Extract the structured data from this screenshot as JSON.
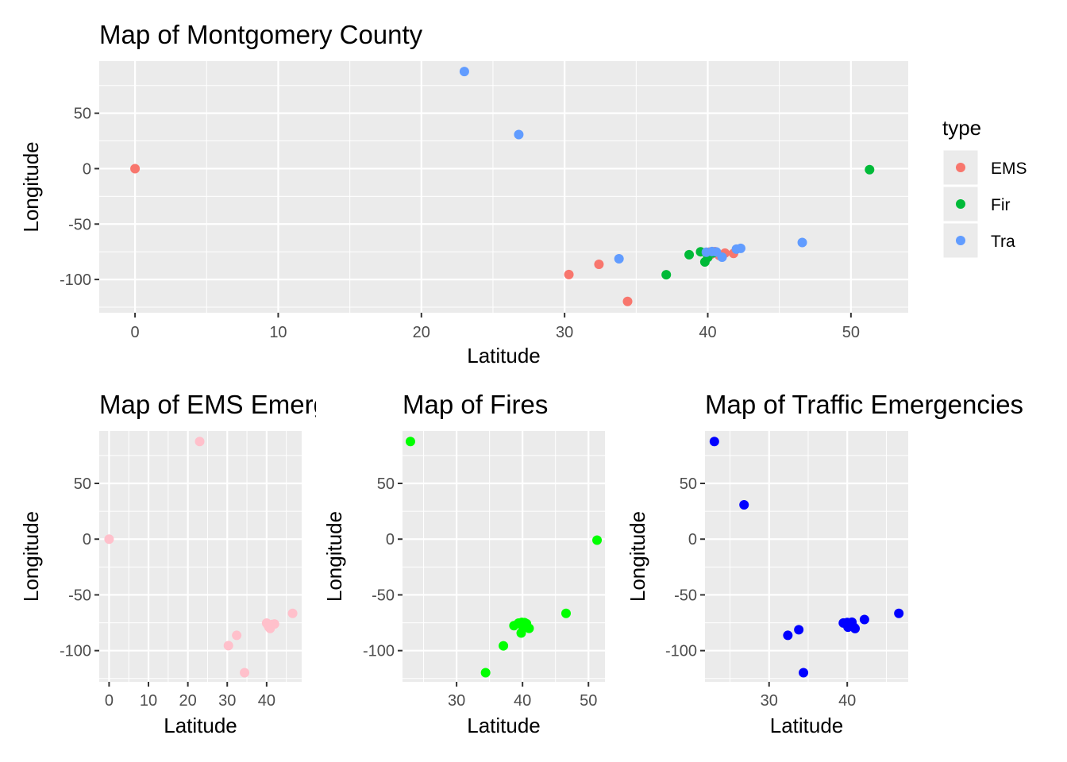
{
  "chart_data": [
    {
      "type": "scatter",
      "title": "Map of Montgomery County",
      "xlabel": "Latitude",
      "ylabel": "Longitude",
      "xlim": [
        -2.5,
        54
      ],
      "ylim": [
        -130,
        97
      ],
      "xticks": [
        0,
        10,
        20,
        30,
        40,
        50
      ],
      "yticks": [
        50,
        0,
        -50,
        -100
      ],
      "grid": true,
      "legend": {
        "title": "type",
        "position": "right",
        "entries": [
          {
            "label": "EMS",
            "color": "#F8766D"
          },
          {
            "label": "Fir",
            "color": "#00BA38"
          },
          {
            "label": "Tra",
            "color": "#619CFF"
          }
        ]
      },
      "series": [
        {
          "name": "EMS",
          "color": "#F8766D",
          "points": [
            [
              0,
              0
            ],
            [
              30.3,
              -95.5
            ],
            [
              32.4,
              -86.3
            ],
            [
              34.4,
              -119.8
            ],
            [
              40.1,
              -75.3
            ],
            [
              40.3,
              -75.9
            ],
            [
              40.6,
              -75.5
            ],
            [
              40.8,
              -78.3
            ],
            [
              40.5,
              -74.9
            ],
            [
              41.2,
              -76.2
            ],
            [
              41.8,
              -76.5
            ],
            [
              40.2,
              -77.5
            ]
          ]
        },
        {
          "name": "Fir",
          "color": "#00BA38",
          "points": [
            [
              51.3,
              -0.9
            ],
            [
              37.1,
              -95.7
            ],
            [
              38.7,
              -77.6
            ],
            [
              39.5,
              -75.0
            ],
            [
              39.8,
              -84.2
            ],
            [
              40.0,
              -80.1
            ],
            [
              40.4,
              -75.9
            ]
          ]
        },
        {
          "name": "Tra",
          "color": "#619CFF",
          "points": [
            [
              23.0,
              87.6
            ],
            [
              26.8,
              30.8
            ],
            [
              33.8,
              -81.3
            ],
            [
              39.9,
              -75.4
            ],
            [
              40.3,
              -74.8
            ],
            [
              40.6,
              -75.1
            ],
            [
              41.0,
              -79.9
            ],
            [
              42.0,
              -72.6
            ],
            [
              42.3,
              -71.9
            ],
            [
              46.6,
              -66.6
            ]
          ]
        }
      ]
    },
    {
      "type": "scatter",
      "title": "Map of EMS Emergencies",
      "xlabel": "Latitude",
      "ylabel": "Longitude",
      "xlim": [
        -2.5,
        48.9
      ],
      "ylim": [
        -128,
        97
      ],
      "xticks": [
        0,
        10,
        20,
        30,
        40
      ],
      "yticks": [
        50,
        0,
        -50,
        -100
      ],
      "grid": true,
      "color": "#FFC0CB",
      "points": [
        [
          0,
          0
        ],
        [
          23.0,
          87.6
        ],
        [
          30.3,
          -95.5
        ],
        [
          32.4,
          -86.3
        ],
        [
          34.4,
          -119.8
        ],
        [
          40.0,
          -75.3
        ],
        [
          40.3,
          -76.8
        ],
        [
          40.6,
          -78.9
        ],
        [
          40.9,
          -80.1
        ],
        [
          41.4,
          -76.6
        ],
        [
          42.0,
          -76.1
        ],
        [
          46.6,
          -66.6
        ]
      ]
    },
    {
      "type": "scatter",
      "title": "Map of Fires",
      "xlabel": "Latitude",
      "ylabel": "Longitude",
      "xlim": [
        21.8,
        52.5
      ],
      "ylim": [
        -128,
        97
      ],
      "xticks": [
        30,
        40,
        50
      ],
      "yticks": [
        50,
        0,
        -50,
        -100
      ],
      "grid": true,
      "color": "#00FF00",
      "points": [
        [
          23.0,
          87.6
        ],
        [
          51.3,
          -0.9
        ],
        [
          34.4,
          -119.8
        ],
        [
          37.1,
          -95.7
        ],
        [
          38.7,
          -77.6
        ],
        [
          39.4,
          -75.3
        ],
        [
          39.9,
          -74.7
        ],
        [
          40.3,
          -74.9
        ],
        [
          40.6,
          -75.8
        ],
        [
          39.8,
          -84.2
        ],
        [
          40.1,
          -79.4
        ],
        [
          41.0,
          -80.0
        ],
        [
          46.6,
          -66.6
        ]
      ]
    },
    {
      "type": "scatter",
      "title": "Map of Traffic Emergencies",
      "xlabel": "Latitude",
      "ylabel": "Longitude",
      "xlim": [
        21.8,
        47.8
      ],
      "ylim": [
        -128,
        97
      ],
      "xticks": [
        30,
        40
      ],
      "yticks": [
        50,
        0,
        -50,
        -100
      ],
      "grid": true,
      "color": "#0000FF",
      "points": [
        [
          23.0,
          87.6
        ],
        [
          26.8,
          30.8
        ],
        [
          32.4,
          -86.3
        ],
        [
          33.8,
          -81.3
        ],
        [
          34.4,
          -119.8
        ],
        [
          39.5,
          -75.2
        ],
        [
          40.0,
          -74.8
        ],
        [
          40.1,
          -79.0
        ],
        [
          40.4,
          -75.6
        ],
        [
          40.6,
          -74.5
        ],
        [
          40.9,
          -79.3
        ],
        [
          41.0,
          -80.2
        ],
        [
          42.2,
          -72.1
        ],
        [
          46.6,
          -66.6
        ]
      ]
    }
  ]
}
